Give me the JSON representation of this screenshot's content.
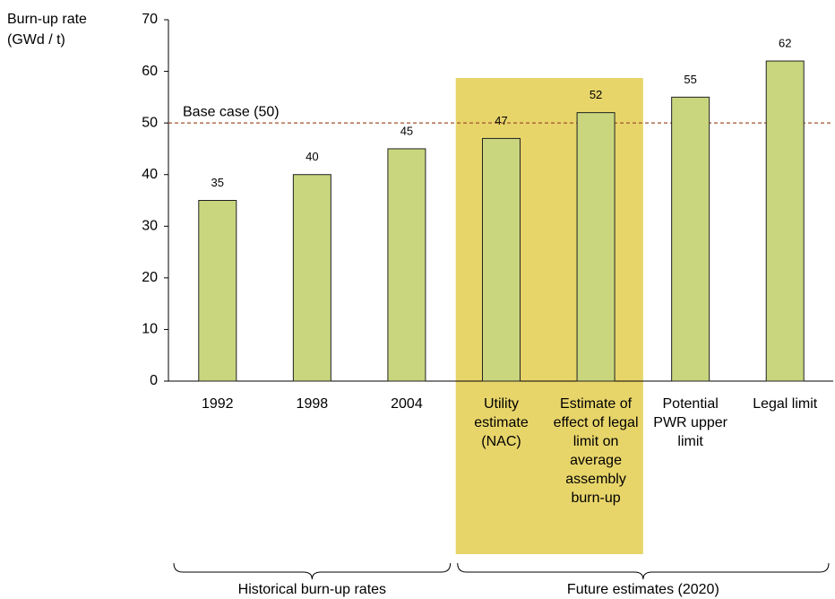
{
  "chart_data": {
    "type": "bar",
    "y_label": [
      "Burn-up rate",
      "(GWd / t)"
    ],
    "categories": [
      "1992",
      "1998",
      "2004",
      "Utility estimate (NAC)",
      "Estimate of effect of legal limit on average assembly burn-up",
      "Potential PWR upper limit",
      "Legal limit"
    ],
    "values": [
      35,
      40,
      45,
      47,
      52,
      55,
      62
    ],
    "color": "#c9d67e",
    "ylim": [
      0,
      70
    ],
    "yticks": [
      0,
      10,
      20,
      30,
      40,
      50,
      60,
      70
    ],
    "reference_line": {
      "value": 50,
      "label": "Base case (50)",
      "color": "#a0522d"
    },
    "highlight": {
      "categories": [
        3,
        4
      ],
      "color": "#e8d56a"
    },
    "groups": [
      {
        "label": "Historical burn-up rates",
        "categories": [
          0,
          2
        ]
      },
      {
        "label": "Future estimates (2020)",
        "categories": [
          3,
          6
        ]
      }
    ]
  }
}
